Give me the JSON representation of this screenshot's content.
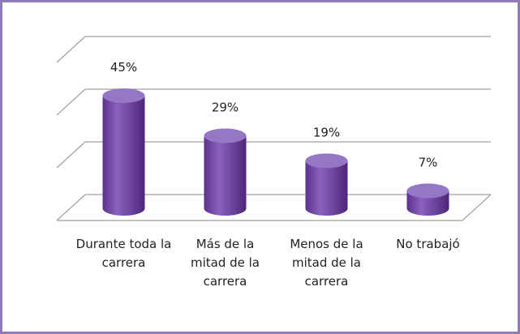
{
  "chart_data": {
    "type": "bar",
    "categories": [
      "Durante toda la carrera",
      "Más de la mitad de la carrera",
      "Menos de la mitad de la carrera",
      "No trabajó"
    ],
    "values": [
      45,
      29,
      19,
      7
    ],
    "value_labels": [
      "45%",
      "29%",
      "19%",
      "7%"
    ],
    "color": "#7a52ad",
    "ylim": [
      0,
      60
    ],
    "yticks": [
      0,
      20,
      40,
      60
    ],
    "grid": true
  }
}
